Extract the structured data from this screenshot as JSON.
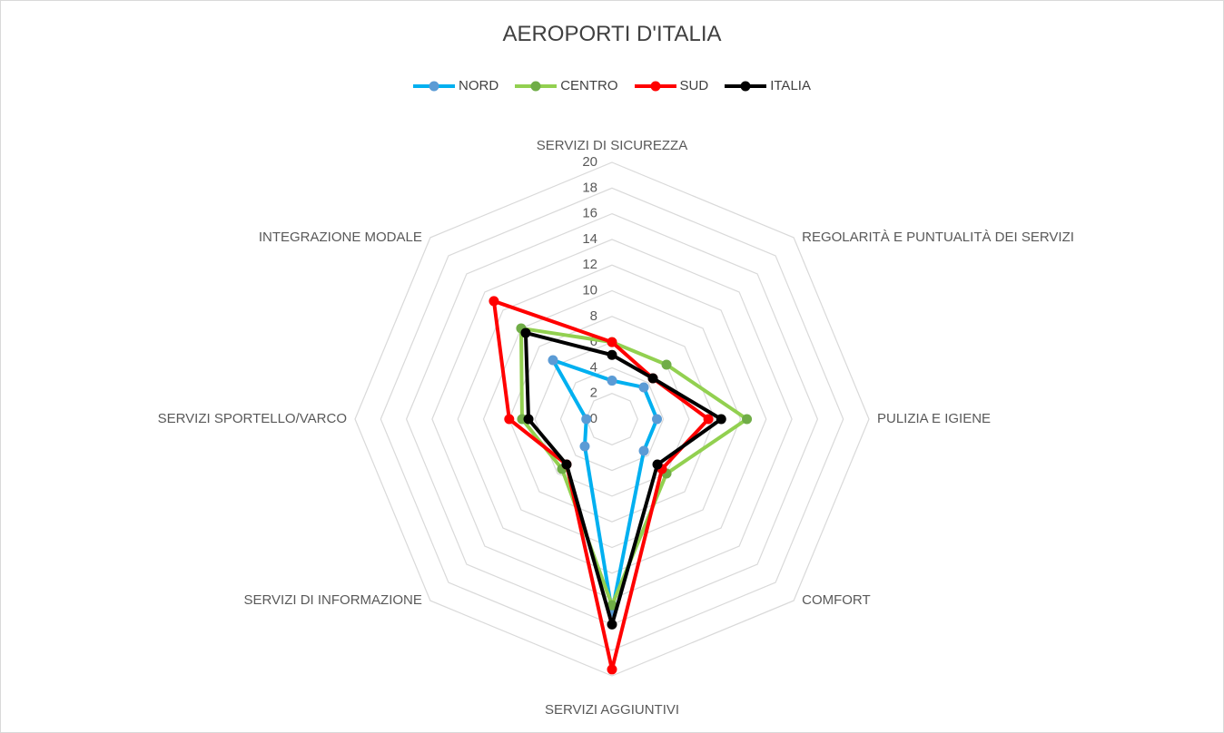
{
  "chart_data": {
    "type": "radar",
    "title": "AEROPORTI D'ITALIA",
    "categories": [
      "SERVIZI DI SICUREZZA",
      "REGOLARITÀ E PUNTUALITÀ DEI SERVIZI",
      "PULIZIA E IGIENE",
      "COMFORT",
      "SERVIZI AGGIUNTIVI",
      "SERVIZI DI INFORMAZIONE",
      "SERVIZI SPORTELLO/VARCO",
      "INTEGRAZIONE MODALE"
    ],
    "rlim": [
      0,
      20
    ],
    "ticks": [
      "0",
      "2",
      "4",
      "6",
      "8",
      "10",
      "12",
      "14",
      "16",
      "18",
      "20"
    ],
    "legend_position": "top",
    "grid": true,
    "series": [
      {
        "name": "NORD",
        "color": "#00b0f0",
        "marker_color": "#5b9bd5",
        "values": [
          3,
          3.5,
          3.5,
          3.5,
          15,
          3,
          2,
          6.5
        ]
      },
      {
        "name": "CENTRO",
        "color": "#92d050",
        "marker_color": "#70ad47",
        "values": [
          6,
          6,
          10.5,
          6,
          14.5,
          5.5,
          7,
          10
        ]
      },
      {
        "name": "SUD",
        "color": "#ff0000",
        "marker_color": "#ff0000",
        "values": [
          6,
          4.5,
          7.5,
          5.5,
          19.5,
          5,
          8,
          13
        ]
      },
      {
        "name": "ITALIA",
        "color": "#000000",
        "marker_color": "#000000",
        "values": [
          5,
          4.5,
          8.5,
          5,
          16,
          5,
          6.5,
          9.5
        ]
      }
    ]
  }
}
